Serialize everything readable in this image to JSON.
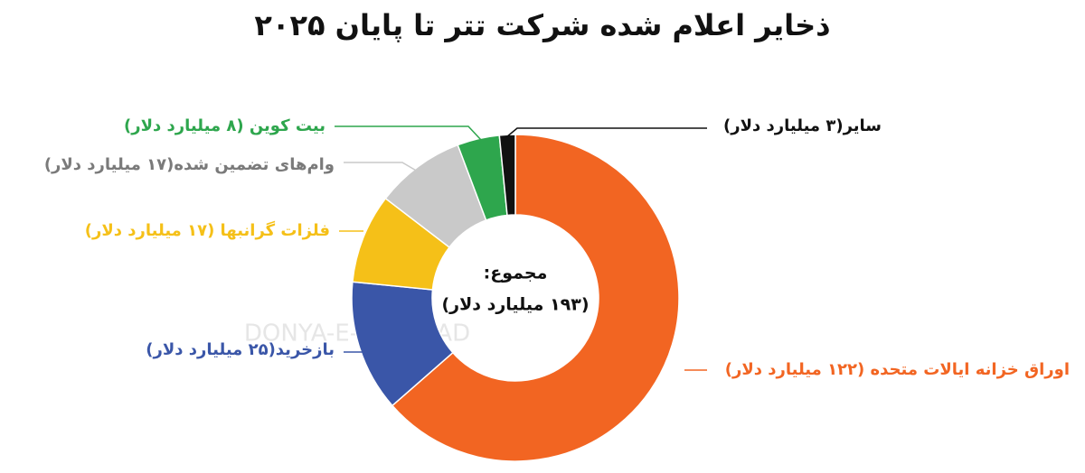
{
  "chart_data": {
    "type": "donut",
    "title": "ذخایر اعلام شده شرکت تتر تا پایان ۲۰۲۵",
    "categories": [
      "اوراق خزانه ایالات متحده (۱۲۲ میلیارد دلار)",
      "بازخرید(۲۵ میلیارد دلار)",
      "فلزات گرانبها (۱۷ میلیارد دلار)",
      "وام‌های تضمین شده(۱۷ میلیارد دلار)",
      "بیت کوین (۸ میلیارد دلار)",
      "سایر(۳ میلیارد دلار)"
    ],
    "values": [
      122,
      25,
      17,
      17,
      8,
      3
    ],
    "colors": [
      "#f26522",
      "#3a56a8",
      "#f5c018",
      "#c9c9c9",
      "#2ea64d",
      "#111111"
    ],
    "center_title": "مجموع:",
    "center_label": "(۱۹۳ میلیارد دلار)",
    "watermark": "DONYA-E-EQTESAD"
  }
}
